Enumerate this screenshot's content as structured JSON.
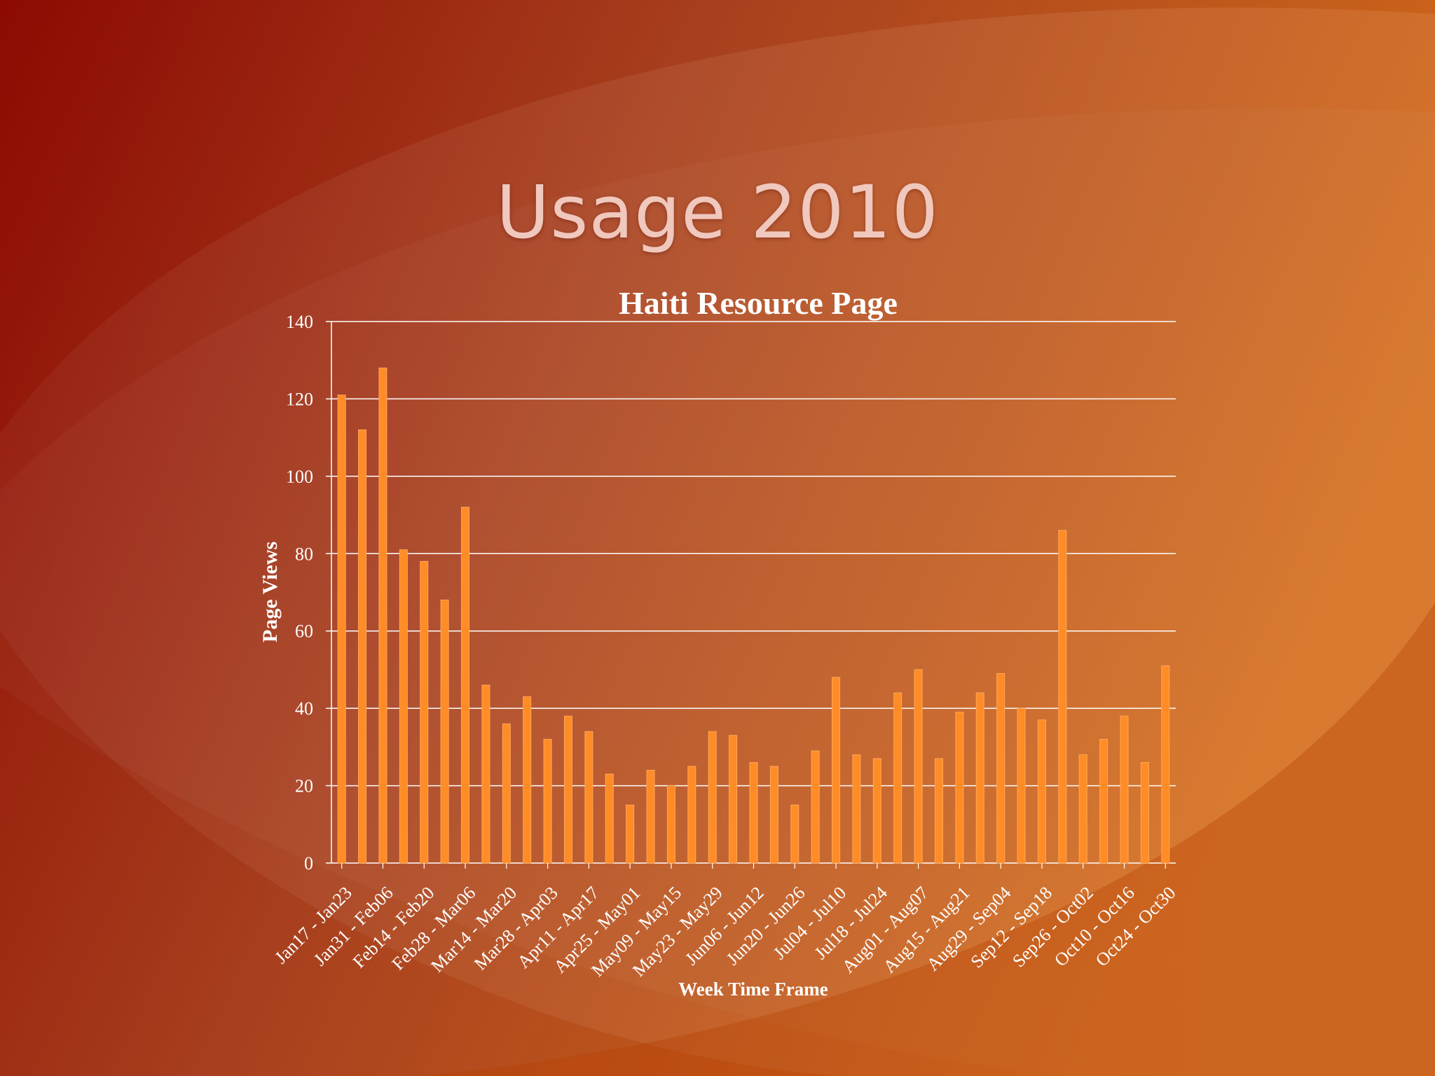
{
  "slide": {
    "title": "Usage 2010",
    "colors": {
      "bg_dark": "#8c0a02",
      "bg_mid": "#a8401e",
      "bg_light": "#d26a1a",
      "bar": "#ff8c26",
      "grid": "#ffffff",
      "text": "#ffffff"
    }
  },
  "chart_data": {
    "type": "bar",
    "title": "Haiti Resource Page",
    "xlabel": "Week Time Frame",
    "ylabel": "Page Views",
    "ylim": [
      0,
      140
    ],
    "yticks": [
      0,
      20,
      40,
      60,
      80,
      100,
      120,
      140
    ],
    "grid": true,
    "x_tick_labels": [
      "Jan17 - Jan23",
      "Jan31 - Feb06",
      "Feb14 - Feb20",
      "Feb28 - Mar06",
      "Mar14 - Mar20",
      "Mar28 - Apr03",
      "Apr11 - Apr17",
      "Apr25 - May01",
      "May09 - May15",
      "May23 - May29",
      "Jun06 - Jun12",
      "Jun20 - Jun26",
      "Jul04 - Jul10",
      "Jul18 - Jul24",
      "Aug01 - Aug07",
      "Aug15 - Aug21",
      "Aug29 - Sep04",
      "Sep12 - Sep18",
      "Sep26 - Oct02",
      "Oct10 - Oct16",
      "Oct24 - Oct30"
    ],
    "values": [
      121,
      112,
      128,
      81,
      78,
      68,
      92,
      46,
      36,
      43,
      32,
      38,
      34,
      23,
      15,
      24,
      20,
      25,
      34,
      33,
      26,
      25,
      15,
      29,
      48,
      28,
      27,
      44,
      50,
      27,
      39,
      44,
      49,
      40,
      37,
      86,
      28,
      32,
      38,
      26,
      51
    ]
  }
}
